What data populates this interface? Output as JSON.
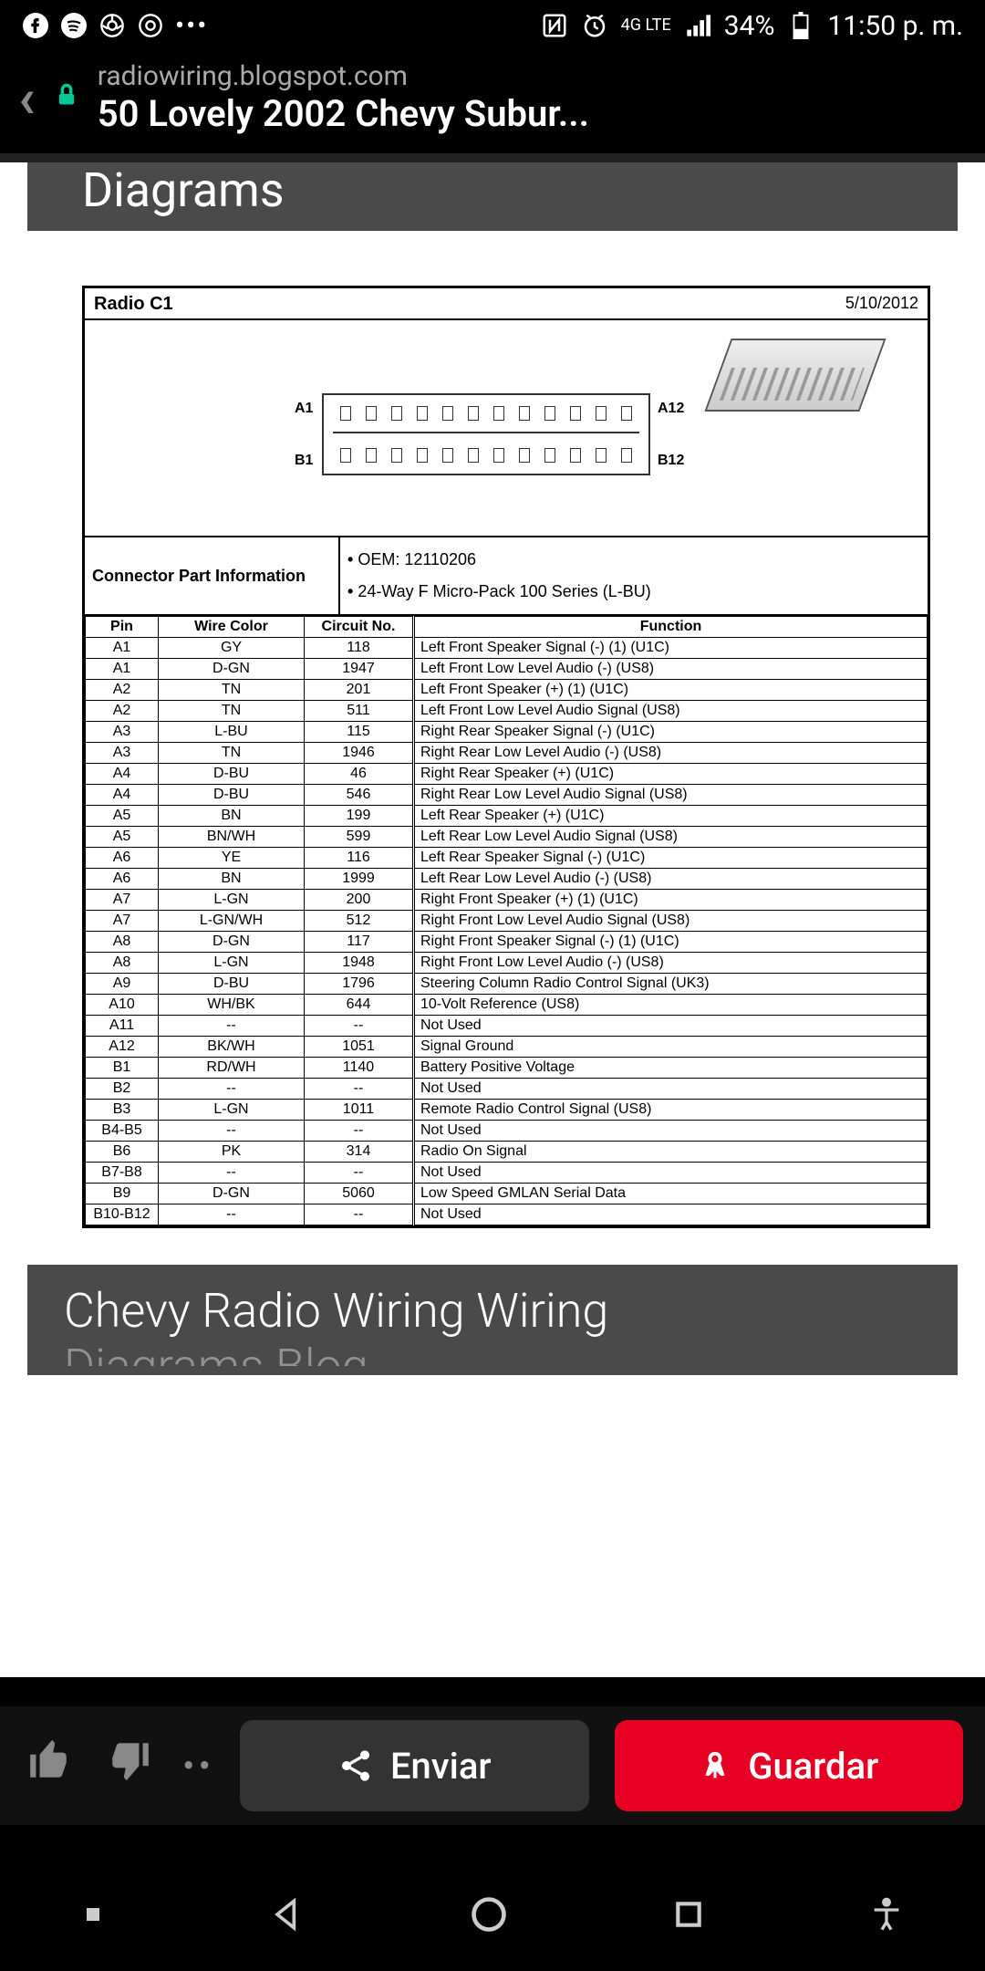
{
  "status": {
    "network_label": "4G LTE",
    "battery_pct": "34%",
    "time": "11:50 p. m."
  },
  "browser": {
    "domain": "radiowiring.blogspot.com",
    "title": "50 Lovely 2002 Chevy Subur..."
  },
  "top_banner": "Diagrams",
  "diagram": {
    "title": "Radio C1",
    "date": "5/10/2012",
    "conn_labels": {
      "a1": "A1",
      "a12": "A12",
      "b1": "B1",
      "b12": "B12"
    },
    "info_label": "Connector Part Information",
    "oem": "OEM: 12110206",
    "series": "24-Way F Micro-Pack 100 Series (L-BU)",
    "columns": [
      "Pin",
      "Wire Color",
      "Circuit No.",
      "Function"
    ],
    "rows": [
      [
        "A1",
        "GY",
        "118",
        "Left Front Speaker Signal (-) (1) (U1C)"
      ],
      [
        "A1",
        "D-GN",
        "1947",
        "Left Front Low Level Audio (-) (US8)"
      ],
      [
        "A2",
        "TN",
        "201",
        "Left Front Speaker (+) (1) (U1C)"
      ],
      [
        "A2",
        "TN",
        "511",
        "Left Front Low Level Audio Signal (US8)"
      ],
      [
        "A3",
        "L-BU",
        "115",
        "Right Rear Speaker Signal (-) (U1C)"
      ],
      [
        "A3",
        "TN",
        "1946",
        "Right Rear Low Level Audio (-) (US8)"
      ],
      [
        "A4",
        "D-BU",
        "46",
        "Right Rear Speaker (+) (U1C)"
      ],
      [
        "A4",
        "D-BU",
        "546",
        "Right Rear Low Level Audio Signal (US8)"
      ],
      [
        "A5",
        "BN",
        "199",
        "Left Rear Speaker (+) (U1C)"
      ],
      [
        "A5",
        "BN/WH",
        "599",
        "Left Rear Low Level Audio Signal (US8)"
      ],
      [
        "A6",
        "YE",
        "116",
        "Left Rear Speaker Signal (-) (U1C)"
      ],
      [
        "A6",
        "BN",
        "1999",
        "Left Rear Low Level Audio (-) (US8)"
      ],
      [
        "A7",
        "L-GN",
        "200",
        "Right Front Speaker (+) (1) (U1C)"
      ],
      [
        "A7",
        "L-GN/WH",
        "512",
        "Right Front Low Level Audio Signal (US8)"
      ],
      [
        "A8",
        "D-GN",
        "117",
        "Right Front Speaker Signal (-) (1) (U1C)"
      ],
      [
        "A8",
        "L-GN",
        "1948",
        "Right Front Low Level Audio (-) (US8)"
      ],
      [
        "A9",
        "D-BU",
        "1796",
        "Steering Column Radio Control Signal (UK3)"
      ],
      [
        "A10",
        "WH/BK",
        "644",
        "10-Volt Reference (US8)"
      ],
      [
        "A11",
        "--",
        "--",
        "Not Used"
      ],
      [
        "A12",
        "BK/WH",
        "1051",
        "Signal Ground"
      ],
      [
        "B1",
        "RD/WH",
        "1140",
        "Battery Positive Voltage"
      ],
      [
        "B2",
        "--",
        "--",
        "Not Used"
      ],
      [
        "B3",
        "L-GN",
        "1011",
        "Remote Radio Control Signal (US8)"
      ],
      [
        "B4-B5",
        "--",
        "--",
        "Not Used"
      ],
      [
        "B6",
        "PK",
        "314",
        "Radio On Signal"
      ],
      [
        "B7-B8",
        "--",
        "--",
        "Not Used"
      ],
      [
        "B9",
        "D-GN",
        "5060",
        "Low Speed GMLAN Serial Data"
      ],
      [
        "B10-B12",
        "--",
        "--",
        "Not Used"
      ]
    ]
  },
  "lower_banner": "Chevy Radio Wiring Wiring",
  "lower_banner2": "Diagrams Blog",
  "actions": {
    "share": "Enviar",
    "save": "Guardar"
  }
}
